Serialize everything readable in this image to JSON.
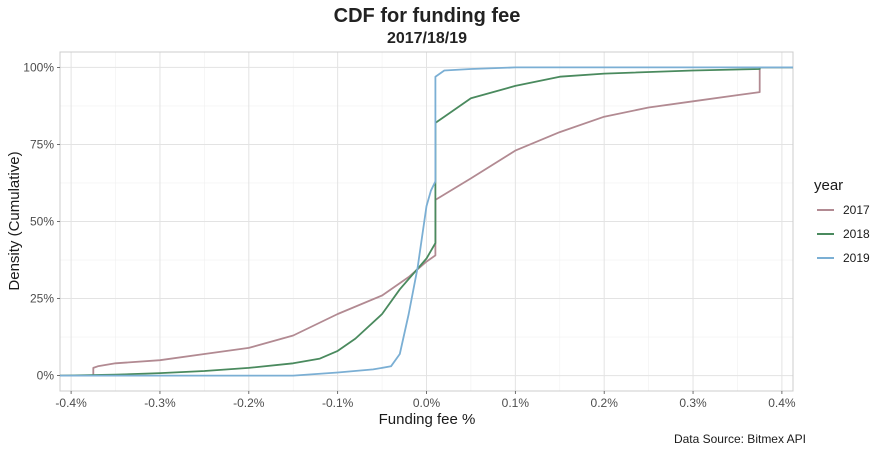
{
  "chart_data": {
    "type": "line",
    "title": "CDF for funding fee",
    "subtitle": "2017/18/19",
    "xlabel": "Funding fee %",
    "ylabel": "Density (Cumulative)",
    "caption": "Data Source: Bitmex API",
    "xlim": [
      -0.4125,
      0.4125
    ],
    "ylim": [
      -0.05,
      1.05
    ],
    "x_ticks": [
      -0.4,
      -0.3,
      -0.2,
      -0.1,
      0.0,
      0.1,
      0.2,
      0.3,
      0.4
    ],
    "x_tick_labels": [
      "-0.4%",
      "-0.3%",
      "-0.2%",
      "-0.1%",
      "0.0%",
      "0.1%",
      "0.2%",
      "0.3%",
      "0.4%"
    ],
    "y_ticks": [
      0,
      0.25,
      0.5,
      0.75,
      1.0
    ],
    "y_tick_labels": [
      "0%",
      "25%",
      "50%",
      "75%",
      "100%"
    ],
    "grid": true,
    "legend": {
      "title": "year",
      "placement": "right"
    },
    "series": [
      {
        "name": "2017",
        "color": "#b28a92",
        "points": [
          [
            -0.4125,
            0.0
          ],
          [
            -0.375,
            0.0
          ],
          [
            -0.375,
            0.025
          ],
          [
            -0.37,
            0.03
          ],
          [
            -0.35,
            0.04
          ],
          [
            -0.3,
            0.05
          ],
          [
            -0.25,
            0.07
          ],
          [
            -0.2,
            0.09
          ],
          [
            -0.15,
            0.13
          ],
          [
            -0.1,
            0.2
          ],
          [
            -0.05,
            0.26
          ],
          [
            -0.02,
            0.32
          ],
          [
            0.0,
            0.37
          ],
          [
            0.01,
            0.39
          ],
          [
            0.01,
            0.57
          ],
          [
            0.05,
            0.64
          ],
          [
            0.1,
            0.73
          ],
          [
            0.15,
            0.79
          ],
          [
            0.2,
            0.84
          ],
          [
            0.25,
            0.87
          ],
          [
            0.3,
            0.89
          ],
          [
            0.35,
            0.91
          ],
          [
            0.375,
            0.92
          ],
          [
            0.375,
            1.0
          ],
          [
            0.4125,
            1.0
          ]
        ]
      },
      {
        "name": "2018",
        "color": "#4a8a5e",
        "points": [
          [
            -0.4125,
            0.0
          ],
          [
            -0.35,
            0.003
          ],
          [
            -0.3,
            0.008
          ],
          [
            -0.25,
            0.015
          ],
          [
            -0.2,
            0.025
          ],
          [
            -0.15,
            0.04
          ],
          [
            -0.12,
            0.055
          ],
          [
            -0.1,
            0.08
          ],
          [
            -0.08,
            0.12
          ],
          [
            -0.05,
            0.2
          ],
          [
            -0.03,
            0.28
          ],
          [
            0.0,
            0.38
          ],
          [
            0.01,
            0.43
          ],
          [
            0.01,
            0.82
          ],
          [
            0.02,
            0.84
          ],
          [
            0.05,
            0.9
          ],
          [
            0.1,
            0.94
          ],
          [
            0.15,
            0.97
          ],
          [
            0.2,
            0.98
          ],
          [
            0.3,
            0.99
          ],
          [
            0.375,
            0.995
          ],
          [
            0.375,
            1.0
          ],
          [
            0.4125,
            1.0
          ]
        ]
      },
      {
        "name": "2019",
        "color": "#7bafd4",
        "points": [
          [
            -0.4125,
            0.0
          ],
          [
            -0.15,
            0.0
          ],
          [
            -0.1,
            0.01
          ],
          [
            -0.06,
            0.02
          ],
          [
            -0.04,
            0.03
          ],
          [
            -0.03,
            0.07
          ],
          [
            -0.02,
            0.2
          ],
          [
            -0.01,
            0.35
          ],
          [
            0.0,
            0.55
          ],
          [
            0.005,
            0.6
          ],
          [
            0.01,
            0.63
          ],
          [
            0.01,
            0.97
          ],
          [
            0.02,
            0.99
          ],
          [
            0.05,
            0.995
          ],
          [
            0.1,
            1.0
          ],
          [
            0.4125,
            1.0
          ]
        ]
      }
    ]
  }
}
